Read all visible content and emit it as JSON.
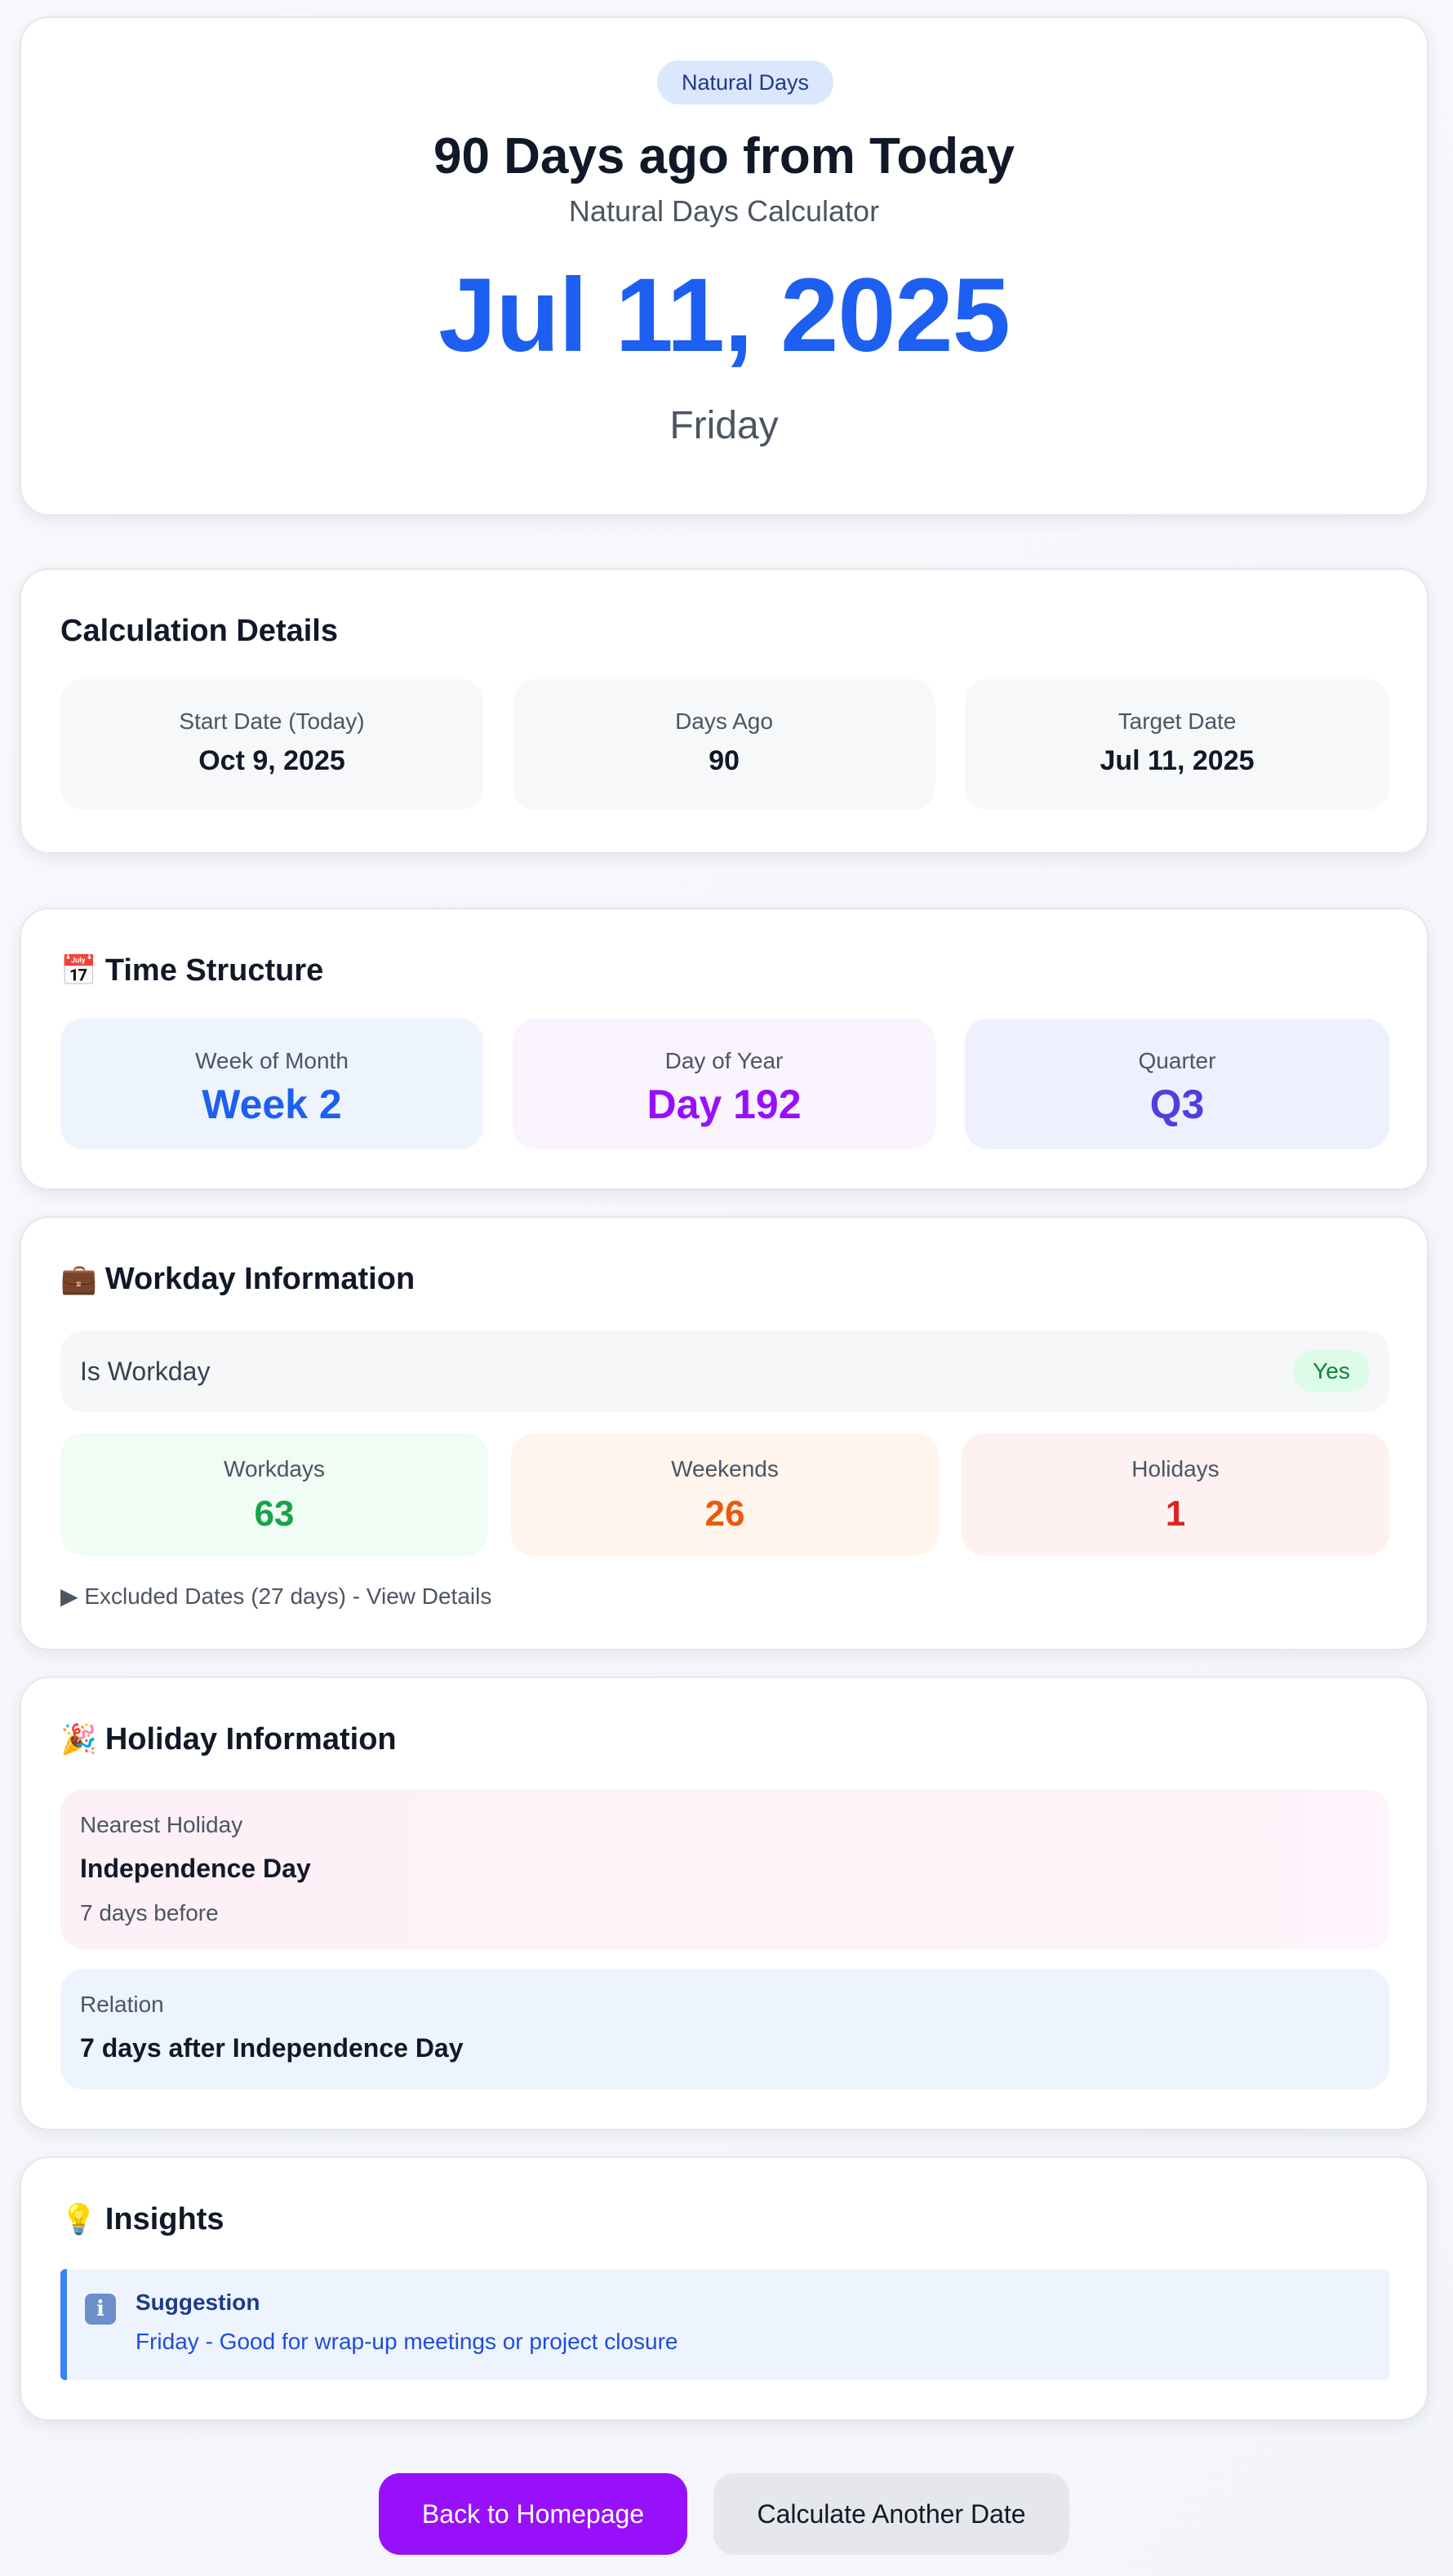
{
  "hero": {
    "badge": "Natural Days",
    "title": "90 Days ago from Today",
    "subtitle": "Natural Days Calculator",
    "date": "Jul 11, 2025",
    "weekday": "Friday"
  },
  "calculation": {
    "title": "Calculation Details",
    "items": [
      {
        "label": "Start Date (Today)",
        "value": "Oct 9, 2025"
      },
      {
        "label": "Days Ago",
        "value": "90"
      },
      {
        "label": "Target Date",
        "value": "Jul 11, 2025"
      }
    ]
  },
  "time_structure": {
    "emoji": "📅",
    "title": "Time Structure",
    "items": [
      {
        "label": "Week of Month",
        "value": "Week 2",
        "color": "#1d5ff0",
        "bg": "#eef4fe"
      },
      {
        "label": "Day of Year",
        "value": "Day 192",
        "color": "#9810fa",
        "bg": "#faf4fe"
      },
      {
        "label": "Quarter",
        "value": "Q3",
        "color": "#4f3ee0",
        "bg": "#eef1fd"
      }
    ]
  },
  "workday": {
    "emoji": "💼",
    "title": "Workday Information",
    "is_workday_label": "Is Workday",
    "is_workday_value": "Yes",
    "stats": [
      {
        "label": "Workdays",
        "value": "63",
        "color": "#16a34a",
        "bg": "#effdf4"
      },
      {
        "label": "Weekends",
        "value": "26",
        "color": "#ea580c",
        "bg": "#fff5ec"
      },
      {
        "label": "Holidays",
        "value": "1",
        "color": "#dc2626",
        "bg": "#fef1f1"
      }
    ],
    "excluded": "▶ Excluded Dates (27 days) - View Details"
  },
  "holiday": {
    "emoji": "🎉",
    "title": "Holiday Information",
    "nearest_label": "Nearest Holiday",
    "nearest_name": "Independence Day",
    "nearest_distance": "7 days before",
    "relation_label": "Relation",
    "relation_value": "7 days after Independence Day"
  },
  "insights": {
    "emoji": "💡",
    "title": "Insights",
    "icon": "info-icon",
    "suggestion_title": "Suggestion",
    "suggestion_text": "Friday - Good for wrap-up meetings or project closure"
  },
  "buttons": {
    "home": "Back to Homepage",
    "another": "Calculate Another Date"
  }
}
